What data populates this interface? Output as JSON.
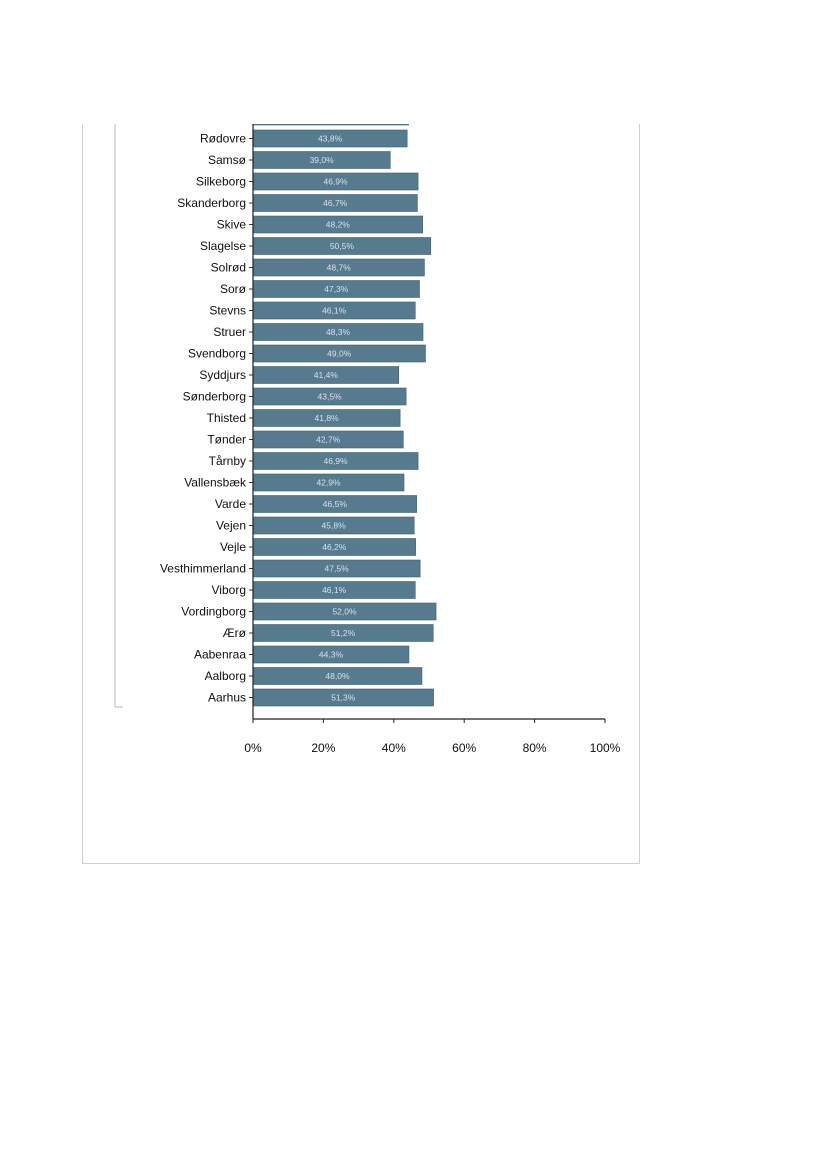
{
  "chart_data": {
    "type": "bar",
    "orientation": "horizontal",
    "categories": [
      "Rødovre",
      "Samsø",
      "Silkeborg",
      "Skanderborg",
      "Skive",
      "Slagelse",
      "Solrød",
      "Sorø",
      "Stevns",
      "Struer",
      "Svendborg",
      "Syddjurs",
      "Sønderborg",
      "Thisted",
      "Tønder",
      "Tårnby",
      "Vallensbæk",
      "Varde",
      "Vejen",
      "Vejle",
      "Vesthimmerland",
      "Viborg",
      "Vordingborg",
      "Ærø",
      "Aabenraa",
      "Aalborg",
      "Aarhus"
    ],
    "values": [
      43.8,
      39.0,
      46.9,
      46.7,
      48.2,
      50.5,
      48.7,
      47.3,
      46.1,
      48.3,
      49.0,
      41.4,
      43.5,
      41.8,
      42.7,
      46.9,
      42.9,
      46.5,
      45.8,
      46.2,
      47.5,
      46.1,
      52.0,
      51.2,
      44.3,
      48.0,
      51.3
    ],
    "value_labels": [
      "43,8%",
      "39,0%",
      "46,9%",
      "46,7%",
      "48,2%",
      "50,5%",
      "48,7%",
      "47,3%",
      "46,1%",
      "48,3%",
      "49,0%",
      "41,4%",
      "43,5%",
      "41,8%",
      "42,7%",
      "46,9%",
      "42,9%",
      "46,5%",
      "45,8%",
      "46,2%",
      "47,5%",
      "46,1%",
      "52,0%",
      "51,2%",
      "44,3%",
      "48,0%",
      "51,3%"
    ],
    "partial_bar_above_value": 44.2,
    "xlim": [
      0,
      100
    ],
    "x_ticks": [
      0,
      20,
      40,
      60,
      80,
      100
    ],
    "x_tick_labels": [
      "0%",
      "20%",
      "40%",
      "60%",
      "80%",
      "100%"
    ],
    "title": "",
    "xlabel": "",
    "ylabel": "",
    "grid": false,
    "bar_color": "#567a8e",
    "bar_edge_color": "#3f5f70"
  }
}
